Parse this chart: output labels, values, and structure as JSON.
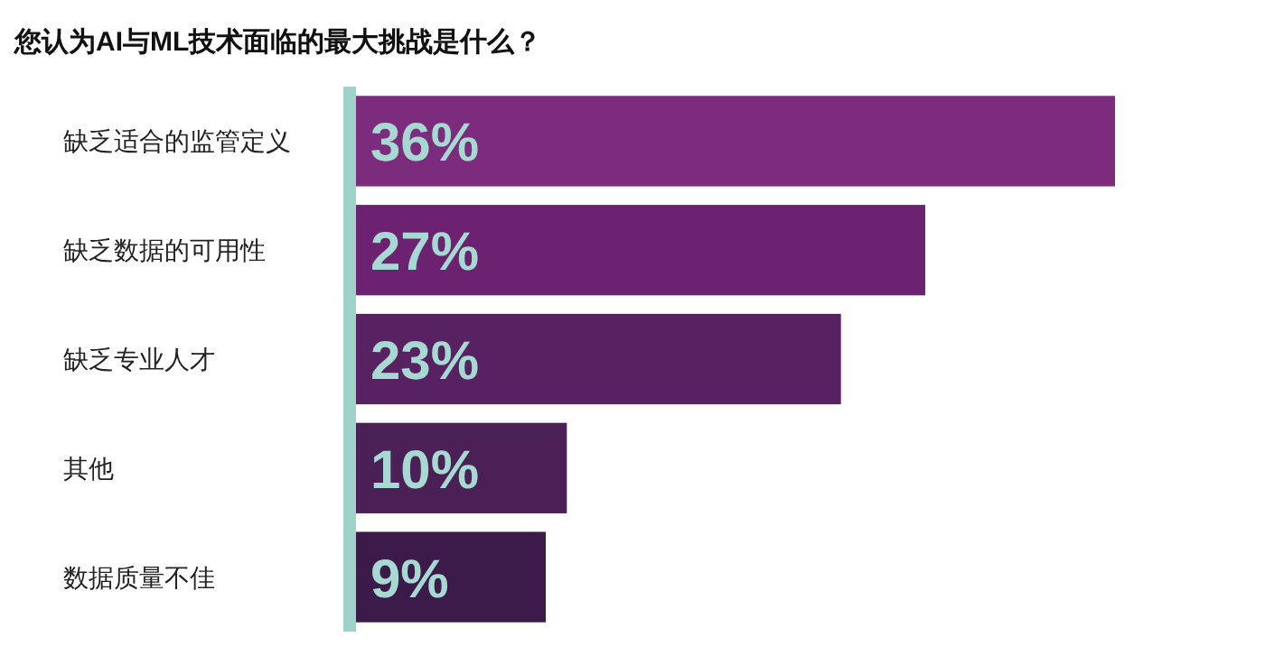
{
  "chart_data": {
    "type": "bar",
    "orientation": "horizontal",
    "title": "您认为AI与ML技术面临的最大挑战是什么？",
    "categories": [
      "缺乏适合的监管定义",
      "缺乏数据的可用性",
      "缺乏专业人才",
      "其他",
      "数据质量不佳"
    ],
    "values": [
      36,
      27,
      23,
      10,
      9
    ],
    "colors": [
      "#7c2b7d",
      "#6c2271",
      "#582262",
      "#4a2057",
      "#3c1b4a"
    ],
    "value_labels": [
      "36%",
      "27%",
      "23%",
      "10%",
      "9%"
    ]
  }
}
